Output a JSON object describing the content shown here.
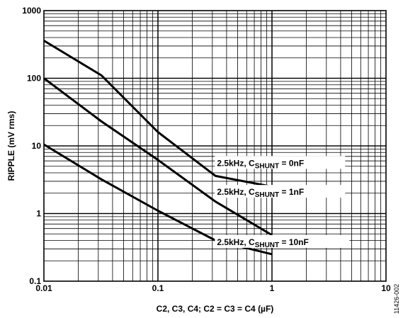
{
  "chart_data": {
    "type": "line",
    "title": "",
    "xlabel": "C2, C3, C4; C2 = C3 = C4 (µF)",
    "ylabel": "RIPPLE (mV rms)",
    "xscale": "log",
    "yscale": "log",
    "xlim": [
      0.01,
      10
    ],
    "ylim": [
      0.1,
      1000
    ],
    "grid": true,
    "legend": "none",
    "x_ticks": [
      {
        "value": 0.01,
        "label": "0.01"
      },
      {
        "value": 0.1,
        "label": "0.1"
      },
      {
        "value": 1,
        "label": "1"
      },
      {
        "value": 10,
        "label": "10"
      }
    ],
    "y_ticks": [
      {
        "value": 0.1,
        "label": "0.1"
      },
      {
        "value": 1,
        "label": "1"
      },
      {
        "value": 10,
        "label": "10"
      },
      {
        "value": 100,
        "label": "100"
      },
      {
        "value": 1000,
        "label": "1000"
      }
    ],
    "series": [
      {
        "label_parts": [
          "2.5kHz, C",
          "SHUNT",
          " = 0nF"
        ],
        "points": [
          [
            0.01,
            360
          ],
          [
            0.032,
            110
          ],
          [
            0.1,
            16
          ],
          [
            0.32,
            3.6
          ],
          [
            1,
            2.5
          ]
        ]
      },
      {
        "label_parts": [
          "2.5kHz, C",
          "SHUNT",
          " = 1nF"
        ],
        "points": [
          [
            0.01,
            100
          ],
          [
            0.032,
            23
          ],
          [
            0.1,
            6.2
          ],
          [
            0.32,
            1.5
          ],
          [
            1,
            0.48
          ]
        ]
      },
      {
        "label_parts": [
          "2.5kHz, C",
          "SHUNT",
          " = 10nF"
        ],
        "points": [
          [
            0.01,
            10.5
          ],
          [
            0.032,
            3.2
          ],
          [
            0.1,
            1.1
          ],
          [
            0.32,
            0.4
          ],
          [
            1,
            0.25
          ]
        ]
      }
    ],
    "figure_id": "11426-002"
  },
  "colors": {
    "line": "#000000",
    "grid": "#000000",
    "background": "#ffffff"
  }
}
